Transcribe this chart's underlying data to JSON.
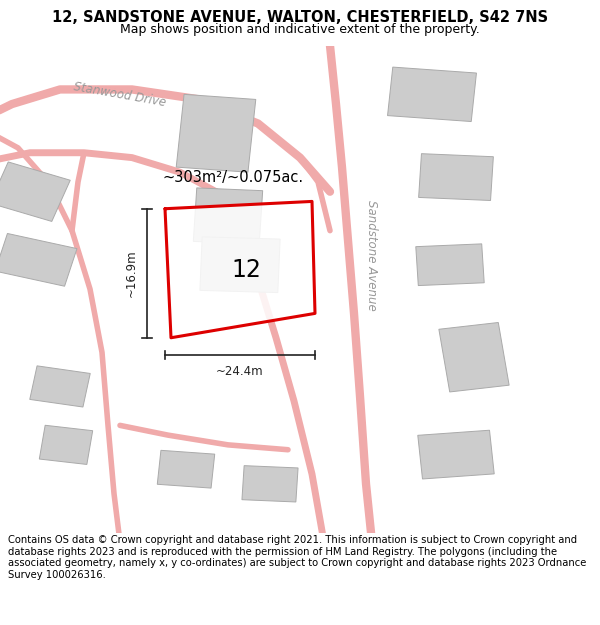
{
  "title": "12, SANDSTONE AVENUE, WALTON, CHESTERFIELD, S42 7NS",
  "subtitle": "Map shows position and indicative extent of the property.",
  "footer": "Contains OS data © Crown copyright and database right 2021. This information is subject to Crown copyright and database rights 2023 and is reproduced with the permission of HM Land Registry. The polygons (including the associated geometry, namely x, y co-ordinates) are subject to Crown copyright and database rights 2023 Ordnance Survey 100026316.",
  "bg_color": "#f0eeec",
  "road_color": "#f0aaaa",
  "building_color": "#cccccc",
  "building_edge": "#aaaaaa",
  "highlight_color": "#dd0000",
  "dim_color": "#222222",
  "area_text": "~303m²/~0.075ac.",
  "height_text": "~16.9m",
  "width_text": "~24.4m",
  "number_text": "12",
  "road_label_1": "Stanwood Drive",
  "road_label_2": "Sandstone Avenue",
  "title_fontsize": 10.5,
  "subtitle_fontsize": 9,
  "footer_fontsize": 7.2
}
